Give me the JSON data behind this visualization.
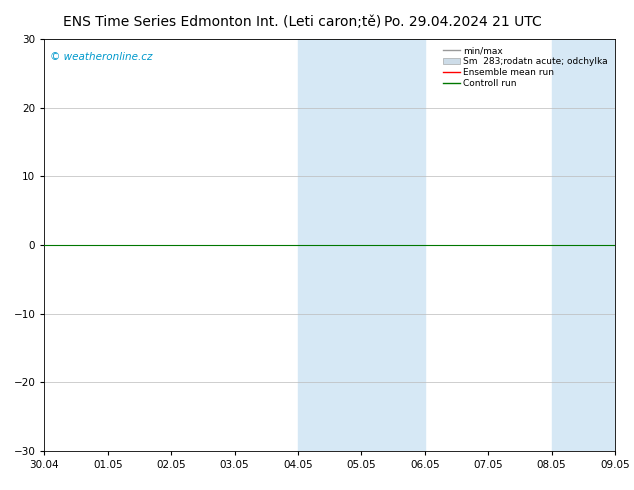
{
  "title_left": "ENS Time Series Edmonton Int. (Leti caron;tě)",
  "title_right": "Po. 29.04.2024 21 UTC",
  "watermark": "© weatheronline.cz",
  "ylim": [
    -30,
    30
  ],
  "yticks": [
    -30,
    -20,
    -10,
    0,
    10,
    20,
    30
  ],
  "xticklabels": [
    "30.04",
    "01.05",
    "02.05",
    "03.05",
    "04.05",
    "05.05",
    "06.05",
    "07.05",
    "08.05",
    "09.05"
  ],
  "shaded_bands": [
    {
      "start": 4,
      "end": 5
    },
    {
      "start": 5,
      "end": 6
    },
    {
      "start": 8,
      "end": 9
    }
  ],
  "shaded_color": "#d6e8f5",
  "bg_color": "#ffffff",
  "plot_bg_color": "#ffffff",
  "watermark_color": "#0099cc",
  "legend_minmax_color": "#999999",
  "legend_fill_color": "#cddce8",
  "legend_ensemble_color": "#ff0000",
  "legend_control_color": "#007700",
  "zero_line_color": "#007700",
  "title_fontsize": 10,
  "tick_fontsize": 7.5
}
